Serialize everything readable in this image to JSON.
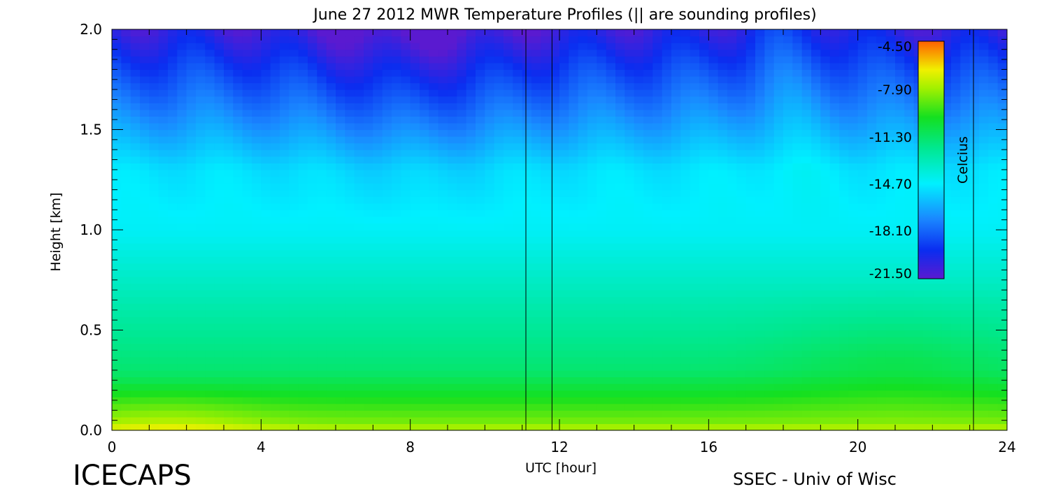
{
  "chart_data": {
    "type": "heatmap",
    "title": "June 27 2012 MWR Temperature Profiles (|| are sounding profiles)",
    "xlabel": "UTC [hour]",
    "ylabel": "Height [km]",
    "xlim": [
      0,
      24
    ],
    "ylim": [
      0,
      2
    ],
    "x_ticks": [
      "0",
      "4",
      "8",
      "12",
      "16",
      "20",
      "24"
    ],
    "y_ticks": [
      "0.0",
      "0.5",
      "1.0",
      "1.5",
      "2.0"
    ],
    "x_tick_values": [
      0,
      4,
      8,
      12,
      16,
      20,
      24
    ],
    "y_tick_values": [
      0,
      0.5,
      1.0,
      1.5,
      2.0
    ],
    "colorbar": {
      "label": "Celcius",
      "ticks": [
        "-21.50",
        "-18.10",
        "-14.70",
        "-11.30",
        "-7.90",
        "-4.50"
      ],
      "tick_values": [
        -21.5,
        -18.1,
        -14.7,
        -11.3,
        -7.9,
        -4.5
      ],
      "range": [
        -21.5,
        -4.5
      ]
    },
    "sounding_times_utc": [
      11.1,
      11.8,
      23.1
    ],
    "field_summary": {
      "surface_temp_c": -7.5,
      "temp_1km_c": -14.5,
      "temp_1_5km_c": -16.5,
      "temp_2km_c": -20.5
    }
  },
  "footer": {
    "left": "ICECAPS",
    "right": "SSEC - Univ of Wisc"
  }
}
